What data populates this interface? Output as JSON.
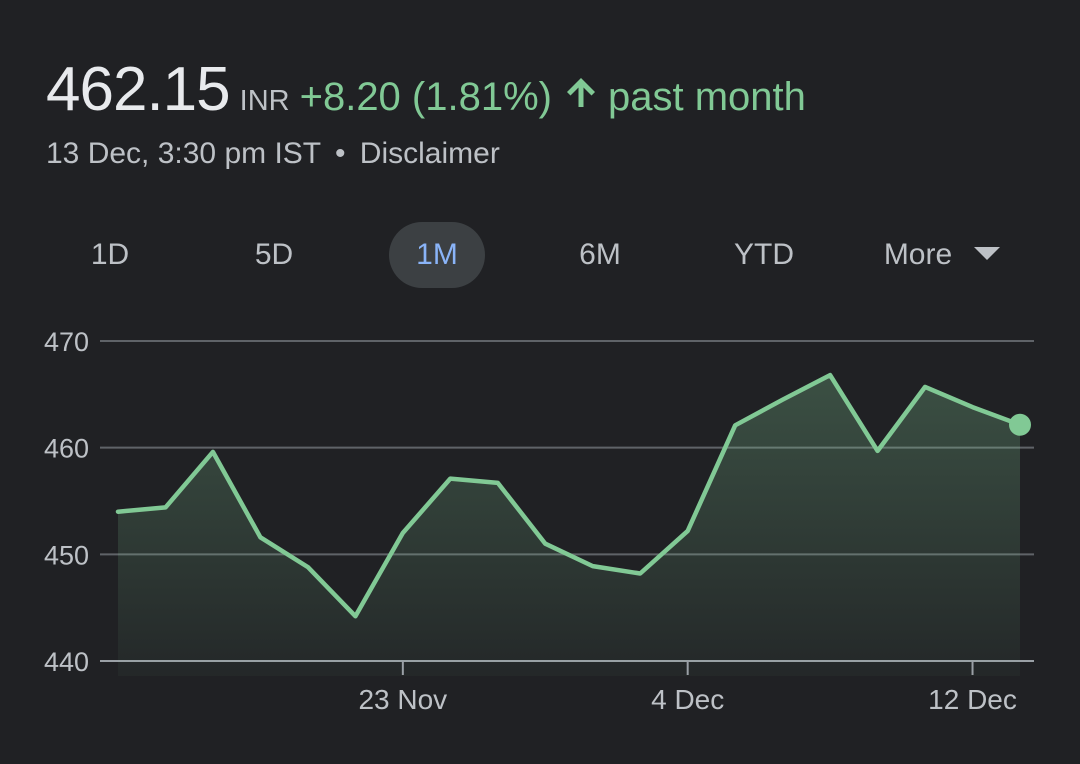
{
  "quote": {
    "price": "462.15",
    "currency": "INR",
    "change": "+8.20 (1.81%)",
    "period": "past month",
    "timestamp": "13 Dec, 3:30 pm IST",
    "separator": "•",
    "disclaimer": "Disclaimer",
    "positive_color": "#81c995",
    "arrow_icon": "arrow-up-icon"
  },
  "tabs": [
    {
      "label": "1D",
      "active": false
    },
    {
      "label": "5D",
      "active": false
    },
    {
      "label": "1M",
      "active": true
    },
    {
      "label": "6M",
      "active": false
    },
    {
      "label": "YTD",
      "active": false
    },
    {
      "label": "More",
      "active": false
    }
  ],
  "chart_data": {
    "type": "area",
    "title": "",
    "xlabel": "",
    "ylabel": "",
    "ylim": [
      440,
      470
    ],
    "yticks": [
      "470",
      "460",
      "450",
      "440"
    ],
    "xticks": [
      {
        "label": "23 Nov",
        "index": 6
      },
      {
        "label": "4 Dec",
        "index": 12
      },
      {
        "label": "12 Dec",
        "index": 18
      }
    ],
    "grid": true,
    "line_color": "#81c995",
    "series": [
      {
        "values": [
          454.0,
          454.4,
          459.6,
          451.6,
          448.8,
          444.2,
          452.0,
          457.1,
          456.7,
          451.0,
          448.9,
          448.2,
          452.2,
          462.1,
          464.5,
          466.8,
          459.7,
          465.7,
          463.8,
          462.15
        ]
      }
    ]
  }
}
